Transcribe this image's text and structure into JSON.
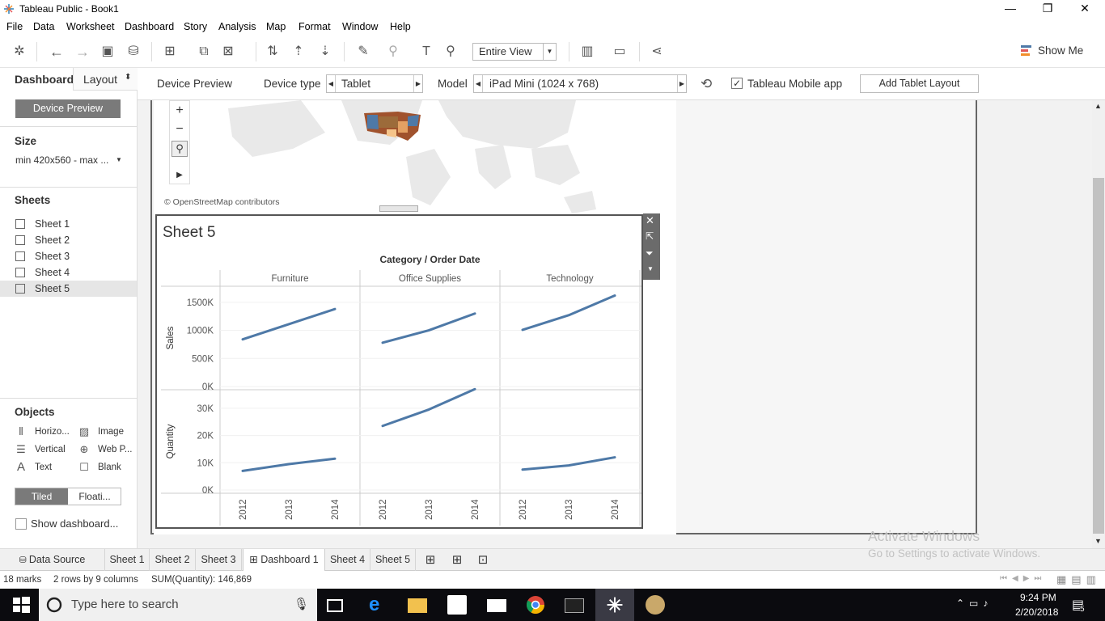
{
  "window": {
    "title": "Tableau Public - Book1",
    "minimize": "—",
    "restore": "❐",
    "close": "✕"
  },
  "menu": [
    "File",
    "Data",
    "Worksheet",
    "Dashboard",
    "Story",
    "Analysis",
    "Map",
    "Format",
    "Window",
    "Help"
  ],
  "toolbar": {
    "fit": "Entire View",
    "show_me": "Show Me"
  },
  "left_panel": {
    "tabs": {
      "dashboard": "Dashboard",
      "layout": "Layout"
    },
    "device_preview_button": "Device Preview",
    "size_heading": "Size",
    "size_value": "min 420x560 - max ...",
    "sheets_heading": "Sheets",
    "sheets": [
      "Sheet 1",
      "Sheet 2",
      "Sheet 3",
      "Sheet 4",
      "Sheet 5"
    ],
    "objects_heading": "Objects",
    "objects": {
      "horizontal": "Horizo...",
      "image": "Image",
      "vertical": "Vertical",
      "webpage": "Web P...",
      "text": "Text",
      "blank": "Blank"
    },
    "tiled": "Tiled",
    "floating": "Floati...",
    "show_title": "Show dashboard..."
  },
  "device_bar": {
    "label": "Device Preview",
    "device_type_label": "Device type",
    "device_type": "Tablet",
    "model_label": "Model",
    "model": "iPad Mini (1024 x 768)",
    "mobile_app": "Tableau Mobile app",
    "add_layout": "Add Tablet Layout"
  },
  "map": {
    "attribution": "© OpenStreetMap contributors"
  },
  "sheet5": {
    "title": "Sheet 5"
  },
  "chart_data": {
    "type": "line",
    "title": "Sheet 5",
    "column_header": "Category / Order Date",
    "categories": [
      "Furniture",
      "Office Supplies",
      "Technology"
    ],
    "x": [
      "2012",
      "2013",
      "2014"
    ],
    "rows": [
      {
        "measure": "Sales",
        "yticks": [
          "1500K",
          "1000K",
          "500K",
          "0K"
        ],
        "ytick_values": [
          1500000,
          1000000,
          500000,
          0
        ],
        "ylim": [
          0,
          1700000
        ],
        "series": [
          {
            "name": "Furniture",
            "values": [
              840000,
              1110000,
              1380000
            ]
          },
          {
            "name": "Office Supplies",
            "values": [
              780000,
              1000000,
              1300000
            ]
          },
          {
            "name": "Technology",
            "values": [
              1010000,
              1270000,
              1620000
            ]
          }
        ]
      },
      {
        "measure": "Quantity",
        "yticks": [
          "30K",
          "20K",
          "10K",
          "0K"
        ],
        "ytick_values": [
          30000,
          20000,
          10000,
          0
        ],
        "ylim": [
          0,
          35000
        ],
        "series": [
          {
            "name": "Furniture",
            "values": [
              7000,
              9500,
              11500
            ]
          },
          {
            "name": "Office Supplies",
            "values": [
              23500,
              29500,
              37000
            ]
          },
          {
            "name": "Technology",
            "values": [
              7500,
              9000,
              12000
            ]
          }
        ]
      }
    ],
    "line_color": "#4e79a7"
  },
  "tabs": [
    "Data Source",
    "Sheet 1",
    "Sheet 2",
    "Sheet 3",
    "Dashboard 1",
    "Sheet 4",
    "Sheet 5"
  ],
  "status": {
    "marks": "18 marks",
    "dims": "2 rows by 9 columns",
    "sum": "SUM(Quantity): 146,869"
  },
  "taskbar": {
    "search": "Type here to search",
    "time": "9:24 PM",
    "date": "2/20/2018",
    "notifications": "5"
  },
  "watermark": {
    "line1": "Activate Windows",
    "line2": "Go to Settings to activate Windows."
  }
}
